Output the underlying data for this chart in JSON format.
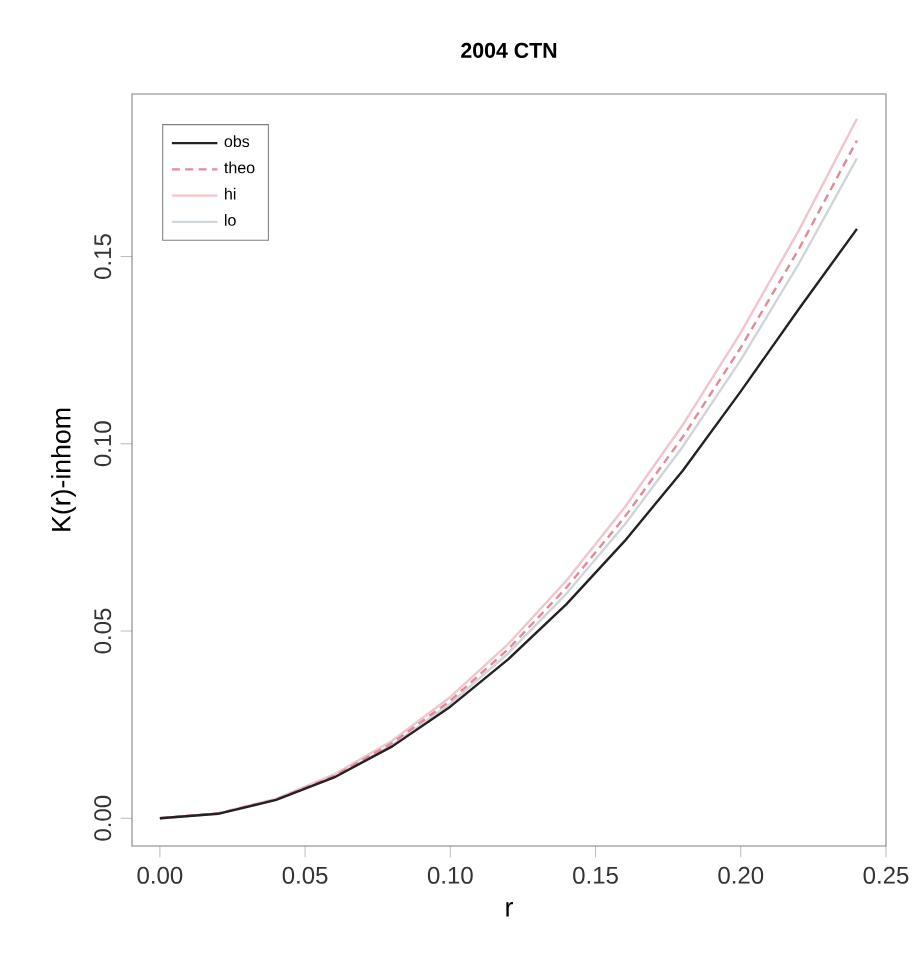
{
  "chart_data": {
    "type": "line",
    "title": "2004 CTN",
    "xlabel": "r",
    "ylabel": "K(r)-inhom",
    "x": [
      0,
      0.02,
      0.04,
      0.06,
      0.08,
      0.1,
      0.12,
      0.14,
      0.16,
      0.18,
      0.2,
      0.22,
      0.24
    ],
    "series": [
      {
        "name": "obs",
        "color": "#222222",
        "line_style": "solid",
        "values": [
          0,
          0.0012,
          0.0049,
          0.0109,
          0.0192,
          0.0298,
          0.0425,
          0.0572,
          0.074,
          0.0928,
          0.114,
          0.136,
          0.1574
        ]
      },
      {
        "name": "theo",
        "color": "#e08a9a",
        "line_style": "dashed",
        "values": [
          0,
          0.0013,
          0.005,
          0.0113,
          0.0201,
          0.0314,
          0.0452,
          0.0616,
          0.0804,
          0.1018,
          0.1257,
          0.152,
          0.181
        ]
      },
      {
        "name": "hi",
        "color": "#f2c4cc",
        "line_style": "solid",
        "values": [
          0,
          0.0013,
          0.0052,
          0.0117,
          0.0207,
          0.0324,
          0.0466,
          0.0635,
          0.083,
          0.105,
          0.1297,
          0.157,
          0.1868
        ]
      },
      {
        "name": "lo",
        "color": "#cfd6da",
        "line_style": "solid",
        "values": [
          0,
          0.0012,
          0.0049,
          0.011,
          0.0196,
          0.0306,
          0.0441,
          0.06,
          0.0784,
          0.0992,
          0.1224,
          0.1481,
          0.1762
        ]
      }
    ],
    "xlim": [
      -0.0096,
      0.25
    ],
    "ylim": [
      -0.0074,
      0.1934
    ],
    "xticks": [
      {
        "value": 0,
        "label": "0.00"
      },
      {
        "value": 0.05,
        "label": "0.05"
      },
      {
        "value": 0.1,
        "label": "0.10"
      },
      {
        "value": 0.15,
        "label": "0.15"
      },
      {
        "value": 0.2,
        "label": "0.20"
      },
      {
        "value": 0.25,
        "label": "0.25"
      }
    ],
    "yticks": [
      {
        "value": 0,
        "label": "0.00"
      },
      {
        "value": 0.05,
        "label": "0.05"
      },
      {
        "value": 0.1,
        "label": "0.10"
      },
      {
        "value": 0.15,
        "label": "0.15"
      }
    ],
    "legend": "top left",
    "grid": false,
    "marker": "none"
  }
}
